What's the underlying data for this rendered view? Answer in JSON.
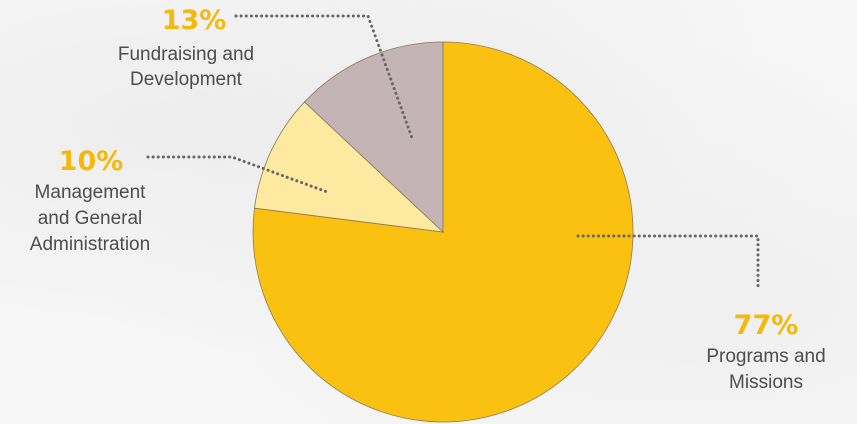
{
  "chart_data": {
    "type": "pie",
    "start_angle_deg": 0,
    "direction": "clockwise",
    "slices": [
      {
        "key": "programs",
        "label_lines": [
          "Programs and",
          "Missions"
        ],
        "value": 77,
        "value_label": "77%",
        "color": "#fbc111"
      },
      {
        "key": "management",
        "label_lines": [
          "Management",
          "and General",
          "Administration"
        ],
        "value": 10,
        "value_label": "10%",
        "color": "#fde9a0"
      },
      {
        "key": "fundraising",
        "label_lines": [
          "Fundraising and",
          "Development"
        ],
        "value": 13,
        "value_label": "13%",
        "color": "#c5b4b5"
      }
    ]
  },
  "colors": {
    "percent_text": "#f6b80c",
    "label_text": "#4d4d4d",
    "leader_line": "#666666",
    "slice_border": "#8c7a55"
  }
}
